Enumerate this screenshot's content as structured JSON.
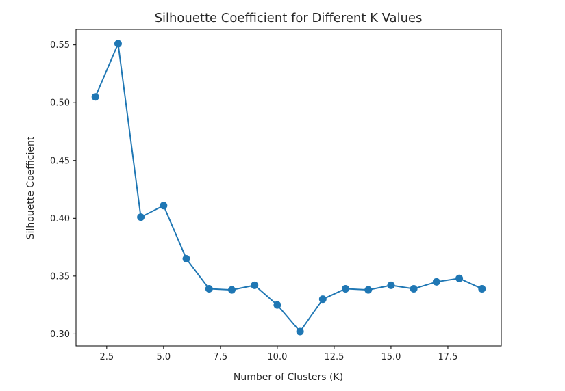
{
  "chart_data": {
    "type": "line",
    "title": "Silhouette Coefficient for Different K Values",
    "xlabel": "Number of Clusters (K)",
    "ylabel": "Silhouette Coefficient",
    "x": [
      2,
      3,
      4,
      5,
      6,
      7,
      8,
      9,
      10,
      11,
      12,
      13,
      14,
      15,
      16,
      17,
      18,
      19
    ],
    "series": [
      {
        "values": [
          0.505,
          0.551,
          0.401,
          0.411,
          0.365,
          0.339,
          0.338,
          0.342,
          0.325,
          0.302,
          0.33,
          0.339,
          0.338,
          0.342,
          0.339,
          0.345,
          0.348,
          0.339
        ],
        "color": "#1f77b4",
        "marker": "circle"
      }
    ],
    "xlim": [
      1.15,
      19.85
    ],
    "ylim": [
      0.2896,
      0.5634
    ],
    "xticks": [
      2.5,
      5.0,
      7.5,
      10.0,
      12.5,
      15.0,
      17.5
    ],
    "xtick_labels": [
      "2.5",
      "5.0",
      "7.5",
      "10.0",
      "12.5",
      "15.0",
      "17.5"
    ],
    "yticks": [
      0.3,
      0.35,
      0.4,
      0.45,
      0.5,
      0.55
    ],
    "ytick_labels": [
      "0.30",
      "0.35",
      "0.40",
      "0.45",
      "0.50",
      "0.55"
    ],
    "grid": false,
    "legend": "none"
  }
}
